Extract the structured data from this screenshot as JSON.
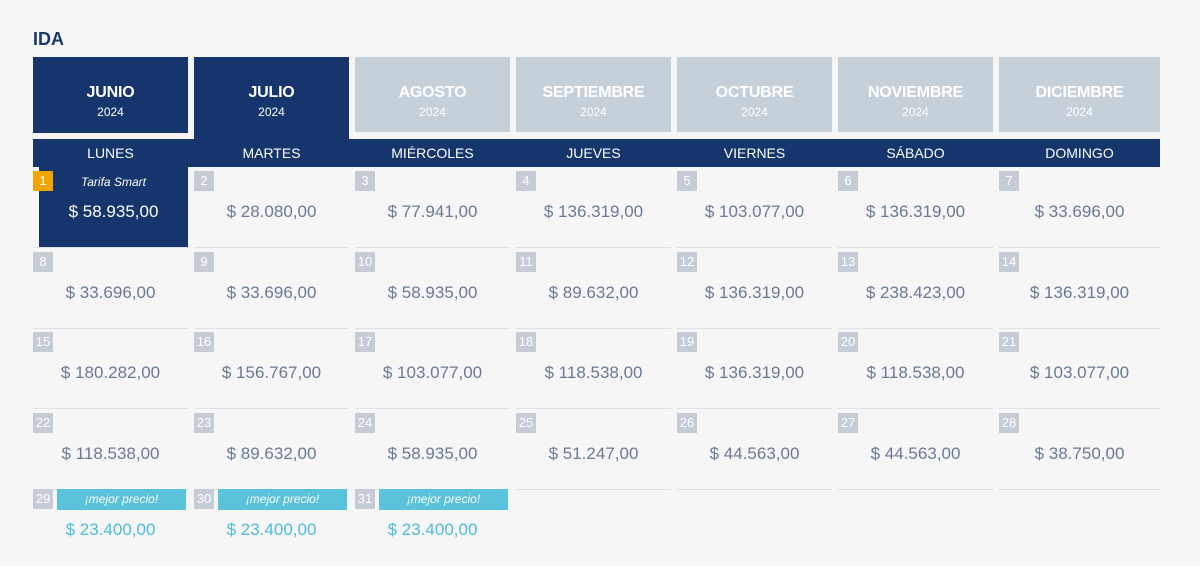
{
  "title": "IDA",
  "months": [
    {
      "name": "JUNIO",
      "year": "2024",
      "state": "current"
    },
    {
      "name": "JULIO",
      "year": "2024",
      "state": "selected"
    },
    {
      "name": "AGOSTO",
      "year": "2024",
      "state": "normal"
    },
    {
      "name": "SEPTIEMBRE",
      "year": "2024",
      "state": "normal"
    },
    {
      "name": "OCTUBRE",
      "year": "2024",
      "state": "normal"
    },
    {
      "name": "NOVIEMBRE",
      "year": "2024",
      "state": "normal"
    },
    {
      "name": "DICIEMBRE",
      "year": "2024",
      "state": "normal"
    }
  ],
  "weekdays": [
    "LUNES",
    "MARTES",
    "MIÉRCOLES",
    "JUEVES",
    "VIERNES",
    "SÁBADO",
    "DOMINGO"
  ],
  "days": [
    {
      "day": "1",
      "price": "$ 58.935,00",
      "selected": true,
      "tag": "Tarifa Smart"
    },
    {
      "day": "2",
      "price": "$ 28.080,00"
    },
    {
      "day": "3",
      "price": "$ 77.941,00"
    },
    {
      "day": "4",
      "price": "$ 136.319,00"
    },
    {
      "day": "5",
      "price": "$ 103.077,00"
    },
    {
      "day": "6",
      "price": "$ 136.319,00"
    },
    {
      "day": "7",
      "price": "$ 33.696,00"
    },
    {
      "day": "8",
      "price": "$ 33.696,00"
    },
    {
      "day": "9",
      "price": "$ 33.696,00"
    },
    {
      "day": "10",
      "price": "$ 58.935,00"
    },
    {
      "day": "11",
      "price": "$ 89.632,00"
    },
    {
      "day": "12",
      "price": "$ 136.319,00"
    },
    {
      "day": "13",
      "price": "$ 238.423,00"
    },
    {
      "day": "14",
      "price": "$ 136.319,00"
    },
    {
      "day": "15",
      "price": "$ 180.282,00"
    },
    {
      "day": "16",
      "price": "$ 156.767,00"
    },
    {
      "day": "17",
      "price": "$ 103.077,00"
    },
    {
      "day": "18",
      "price": "$ 118.538,00"
    },
    {
      "day": "19",
      "price": "$ 136.319,00"
    },
    {
      "day": "20",
      "price": "$ 118.538,00"
    },
    {
      "day": "21",
      "price": "$ 103.077,00"
    },
    {
      "day": "22",
      "price": "$ 118.538,00"
    },
    {
      "day": "23",
      "price": "$ 89.632,00"
    },
    {
      "day": "24",
      "price": "$ 58.935,00"
    },
    {
      "day": "25",
      "price": "$ 51.247,00"
    },
    {
      "day": "26",
      "price": "$ 44.563,00"
    },
    {
      "day": "27",
      "price": "$ 44.563,00"
    },
    {
      "day": "28",
      "price": "$ 38.750,00"
    },
    {
      "day": "29",
      "price": "$ 23.400,00",
      "best": true,
      "tag": "¡mejor precio!"
    },
    {
      "day": "30",
      "price": "$ 23.400,00",
      "best": true,
      "tag": "¡mejor precio!"
    },
    {
      "day": "31",
      "price": "$ 23.400,00",
      "best": true,
      "tag": "¡mejor precio!"
    }
  ],
  "colors": {
    "primary": "#15356c",
    "inactive_tab": "#c5d0d9",
    "highlight_day": "#f0a500",
    "best_price": "#5ac3dc"
  }
}
